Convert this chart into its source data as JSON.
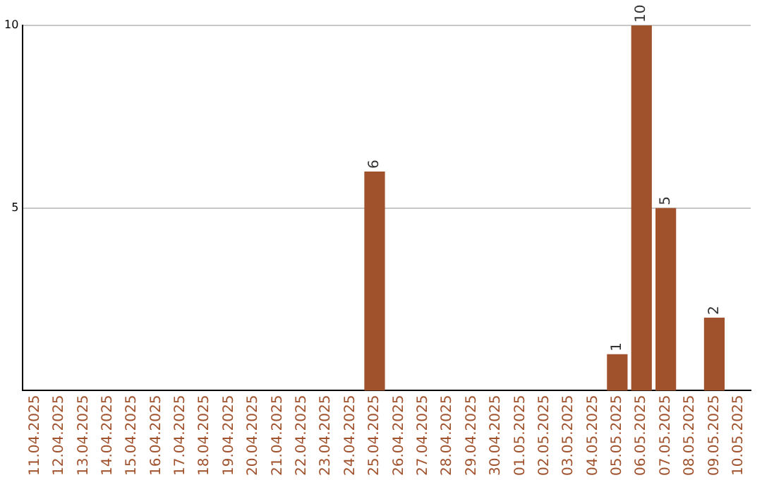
{
  "chart_data": {
    "type": "bar",
    "categories": [
      "11.04.2025",
      "12.04.2025",
      "13.04.2025",
      "14.04.2025",
      "15.04.2025",
      "16.04.2025",
      "17.04.2025",
      "18.04.2025",
      "19.04.2025",
      "20.04.2025",
      "21.04.2025",
      "22.04.2025",
      "23.04.2025",
      "24.04.2025",
      "25.04.2025",
      "26.04.2025",
      "27.04.2025",
      "28.04.2025",
      "29.04.2025",
      "30.04.2025",
      "01.05.2025",
      "02.05.2025",
      "03.05.2025",
      "04.05.2025",
      "05.05.2025",
      "06.05.2025",
      "07.05.2025",
      "08.05.2025",
      "09.05.2025",
      "10.05.2025"
    ],
    "values": [
      0,
      0,
      0,
      0,
      0,
      0,
      0,
      0,
      0,
      0,
      0,
      0,
      0,
      0,
      6,
      0,
      0,
      0,
      0,
      0,
      0,
      0,
      0,
      0,
      1,
      10,
      5,
      0,
      2,
      0
    ],
    "value_labels": [
      null,
      null,
      null,
      null,
      null,
      null,
      null,
      null,
      null,
      null,
      null,
      null,
      null,
      null,
      "6",
      null,
      null,
      null,
      null,
      null,
      null,
      null,
      null,
      null,
      "1",
      "10",
      "5",
      null,
      "2",
      null
    ],
    "color": "#a0522d",
    "ylim": [
      0,
      10
    ],
    "yticks": [
      5,
      10
    ],
    "grid": "y",
    "legend": false
  }
}
